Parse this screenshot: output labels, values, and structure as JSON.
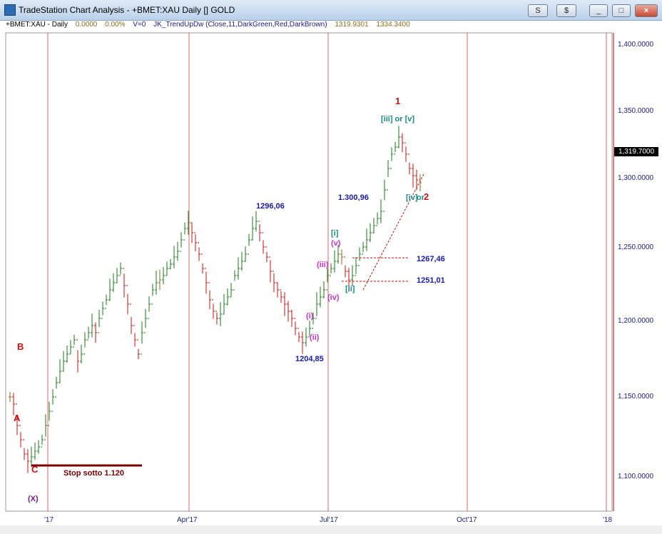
{
  "window": {
    "title": "TradeStation Chart Analysis - +BMET:XAU Daily [] GOLD",
    "buttons": [
      "S",
      "$",
      "_",
      "□",
      "×"
    ]
  },
  "header": {
    "symbol": "+BMET:XAU - Daily",
    "change": "0.0000",
    "pct": "0.00%",
    "volume": "V=0",
    "indicator": "JK_TrendUpDw (Close,11,DarkGreen,Red,DarkBrown)",
    "val1": "1319.9301",
    "val2": "1334.3400"
  },
  "colors": {
    "up": "#1a7a1a",
    "down": "#cc1111",
    "neutral": "#8a6d1a",
    "grid": "#cc0000",
    "axis_text": "#1a1a8c"
  },
  "price_axis": [
    "1,400.0000",
    "1,350.0000",
    "1,300.0000",
    "1,250.0000",
    "1,200.0000",
    "1,150.0000",
    "1,100.0000"
  ],
  "last_price": "1,319.7000",
  "month_axis": [
    "'17",
    "Apr'17",
    "Jul'17",
    "Oct'17",
    "'18"
  ],
  "chart_data": {
    "type": "ohlc",
    "x_labels": [
      "'17",
      "Apr'17",
      "Jul'17",
      "Oct'17",
      "'18"
    ],
    "ylim": [
      1090,
      1425
    ],
    "series": [
      {
        "values": [
          1170,
          1165,
          1150,
          1140,
          1130,
          1125,
          1128,
          1132,
          1135,
          1140,
          1150,
          1160,
          1170,
          1180,
          1188,
          1195,
          1200,
          1205,
          1210,
          1195,
          1200,
          1210,
          1215,
          1220,
          1215,
          1225,
          1232,
          1238,
          1245,
          1250,
          1255,
          1260,
          1248,
          1235,
          1220,
          1210,
          1200,
          1215,
          1225,
          1235,
          1245,
          1250,
          1252,
          1255,
          1260,
          1263,
          1268,
          1272,
          1280,
          1288,
          1292,
          1285,
          1278,
          1270,
          1260,
          1250,
          1238,
          1230,
          1225,
          1228,
          1235,
          1240,
          1245,
          1255,
          1260,
          1265,
          1270,
          1280,
          1288,
          1293,
          1285,
          1275,
          1268,
          1258,
          1250,
          1245,
          1240,
          1235,
          1230,
          1225,
          1218,
          1212,
          1208,
          1212,
          1218,
          1225,
          1235,
          1240,
          1245,
          1255,
          1260,
          1265,
          1270,
          1268,
          1258,
          1252,
          1255,
          1262,
          1270,
          1275,
          1280,
          1285,
          1290,
          1295,
          1300,
          1315,
          1330,
          1340,
          1345,
          1352,
          1348,
          1340,
          1330,
          1325,
          1322,
          1320
        ]
      }
    ],
    "annotations": [
      {
        "text": "1",
        "price": 1375,
        "bar": 108
      },
      {
        "text": "[iii] or [v]",
        "price": 1363,
        "bar": 104
      },
      {
        "text": "1296,06",
        "price": 1302,
        "bar": 69
      },
      {
        "text": "1.300,96",
        "price": 1308,
        "bar": 92
      },
      {
        "text": "[iv]",
        "price": 1308,
        "bar": 111
      },
      {
        "text": "or",
        "price": 1308,
        "bar": 114
      },
      {
        "text": "2",
        "price": 1308,
        "bar": 116
      },
      {
        "text": "[i]",
        "price": 1283,
        "bar": 90
      },
      {
        "text": "(v)",
        "price": 1276,
        "bar": 90
      },
      {
        "text": "(iii)",
        "price": 1261,
        "bar": 86
      },
      {
        "text": "1267,46",
        "price": 1265,
        "bar": 114
      },
      {
        "text": "1251,01",
        "price": 1250,
        "bar": 114
      },
      {
        "text": "[ii]",
        "price": 1244,
        "bar": 94
      },
      {
        "text": "(iv)",
        "price": 1238,
        "bar": 89
      },
      {
        "text": "(i)",
        "price": 1225,
        "bar": 83
      },
      {
        "text": "(ii)",
        "price": 1210,
        "bar": 84
      },
      {
        "text": "1204,85",
        "price": 1195,
        "bar": 80
      },
      {
        "text": "B",
        "price": 1203,
        "bar": 2
      },
      {
        "text": "A",
        "price": 1153,
        "bar": 1
      },
      {
        "text": "C",
        "price": 1117,
        "bar": 6
      },
      {
        "text": "Stop sotto 1.120",
        "price": 1115,
        "bar": 15
      },
      {
        "text": "(X)",
        "price": 1097,
        "bar": 5
      }
    ],
    "hlines": [
      {
        "price": 1267.46,
        "from_bar": 96,
        "to_bar": 112
      },
      {
        "price": 1251.01,
        "from_bar": 93,
        "to_bar": 112
      },
      {
        "price": 1122,
        "from_bar": 6,
        "to_bar": 37,
        "solid": true
      }
    ],
    "trendline": {
      "from_bar": 99,
      "from_price": 1245,
      "to_bar": 116,
      "to_price": 1326
    }
  }
}
